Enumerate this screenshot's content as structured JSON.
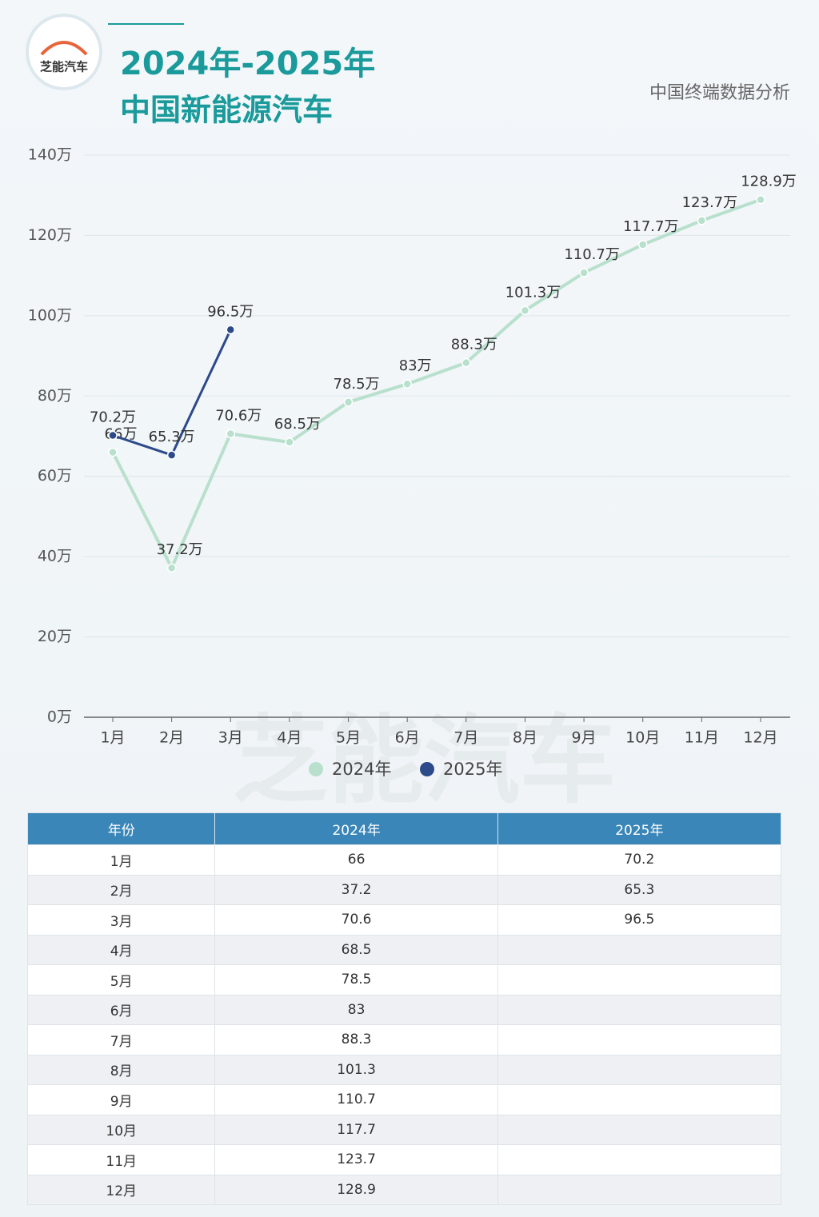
{
  "header": {
    "logo": "芝能汽车",
    "title_line1": "2024年-2025年",
    "title_line2": "中国新能源汽车",
    "source": "中国终端数据分析",
    "watermark": "芝能汽车"
  },
  "chart_data": {
    "type": "line",
    "categories": [
      "1月",
      "2月",
      "3月",
      "4月",
      "5月",
      "6月",
      "7月",
      "8月",
      "9月",
      "10月",
      "11月",
      "12月"
    ],
    "series": [
      {
        "name": "2024年",
        "color": "#b8e0cd",
        "values": [
          66,
          37.2,
          70.6,
          68.5,
          78.5,
          83,
          88.3,
          101.3,
          110.7,
          117.7,
          123.7,
          128.9
        ],
        "value_labels": [
          "66万",
          "37.2万",
          "70.6万",
          "68.5万",
          "78.5万",
          "83万",
          "88.3万",
          "101.3万",
          "110.7万",
          "117.7万",
          "123.7万",
          "128.9万"
        ]
      },
      {
        "name": "2025年",
        "color": "#2c4a8a",
        "values": [
          70.2,
          65.3,
          96.5,
          null,
          null,
          null,
          null,
          null,
          null,
          null,
          null,
          null
        ],
        "value_labels": [
          "70.2万",
          "65.3万",
          "96.5万",
          null,
          null,
          null,
          null,
          null,
          null,
          null,
          null,
          null
        ]
      }
    ],
    "ylim": [
      0,
      140
    ],
    "yticks": [
      {
        "value": 0,
        "label": "0万"
      },
      {
        "value": 20,
        "label": "20万"
      },
      {
        "value": 40,
        "label": "40万"
      },
      {
        "value": 60,
        "label": "60万"
      },
      {
        "value": 80,
        "label": "80万"
      },
      {
        "value": 100,
        "label": "100万"
      },
      {
        "value": 120,
        "label": "120万"
      },
      {
        "value": 140,
        "label": "140万"
      }
    ],
    "grid": true,
    "legend": "bottom"
  },
  "table": {
    "header": [
      "年份",
      "2024年",
      "2025年"
    ],
    "rows": [
      [
        "1月",
        "66",
        "70.2"
      ],
      [
        "2月",
        "37.2",
        "65.3"
      ],
      [
        "3月",
        "70.6",
        "96.5"
      ],
      [
        "4月",
        "68.5"
      ],
      [
        "5月",
        "78.5"
      ],
      [
        "6月",
        "83"
      ],
      [
        "7月",
        "88.3"
      ],
      [
        "8月",
        "101.3"
      ],
      [
        "9月",
        "110.7"
      ],
      [
        "10月",
        "117.7"
      ],
      [
        "11月",
        "123.7"
      ],
      [
        "12月",
        "128.9"
      ]
    ]
  }
}
